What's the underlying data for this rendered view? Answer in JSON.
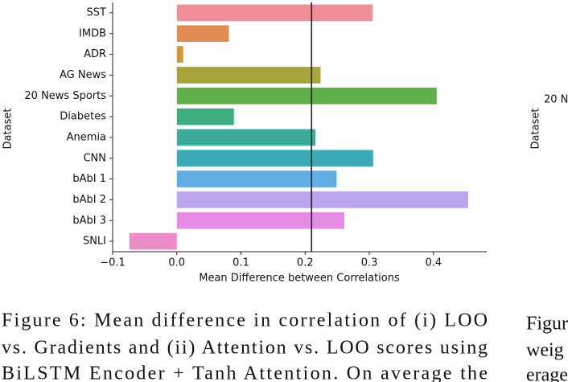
{
  "chart_data": {
    "type": "bar",
    "orientation": "horizontal",
    "xlabel": "Mean Difference between Correlations",
    "ylabel": "Dataset",
    "categories": [
      "SST",
      "IMDB",
      "ADR",
      "AG News",
      "20 News Sports",
      "Diabetes",
      "Anemia",
      "CNN",
      "bAbI 1",
      "bAbI 2",
      "bAbI 3",
      "SNLI"
    ],
    "values": [
      0.305,
      0.081,
      0.01,
      0.224,
      0.405,
      0.089,
      0.216,
      0.306,
      0.249,
      0.454,
      0.261,
      -0.074
    ],
    "colors": [
      "#f08f9a",
      "#e08b4f",
      "#d39a3a",
      "#a8a43c",
      "#5fb04a",
      "#3fae7f",
      "#3dab9c",
      "#3aaab6",
      "#5fade2",
      "#b9a6ef",
      "#e48ce4",
      "#ee8bc9"
    ],
    "reference_line": 0.21,
    "xlim": [
      -0.1,
      0.483
    ],
    "xticks": [
      {
        "value": -0.1,
        "label": "−0.1"
      },
      {
        "value": 0,
        "label": "0.0"
      },
      {
        "value": 0.1,
        "label": "0.1"
      },
      {
        "value": 0.2,
        "label": "0.2"
      },
      {
        "value": 0.3,
        "label": "0.3"
      },
      {
        "value": 0.4,
        "label": "0.4"
      }
    ],
    "grid": false
  },
  "caption": {
    "lines": [
      "Figure 6:  Mean difference in correlation of (i) LOO",
      "vs. Gradients and (ii) Attention vs. LOO scores using",
      "BiLSTM Encoder + Tanh Attention.  On average the"
    ]
  },
  "neighbor": {
    "tick": "20 N",
    "ylabel": "Dataset",
    "caption": [
      "Figur",
      "weig",
      "erage"
    ]
  }
}
